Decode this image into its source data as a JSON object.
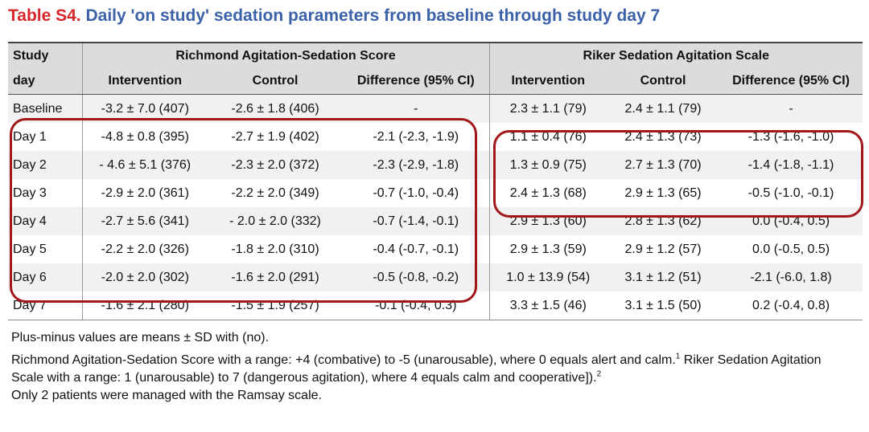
{
  "title": {
    "label": "Table S4.",
    "text": "Daily 'on study' sedation parameters from baseline through study day 7"
  },
  "table": {
    "stub_header": [
      "Study",
      "day"
    ],
    "groups": [
      "Richmond Agitation-Sedation Score",
      "Riker Sedation Agitation Scale"
    ],
    "subheaders": [
      "Intervention",
      "Control",
      "Difference (95% CI)",
      "Intervention",
      "Control",
      "Difference (95% CI)"
    ],
    "rows": [
      {
        "day": "Baseline",
        "cells": [
          "-3.2 ± 7.0 (407)",
          "-2.6 ± 1.8 (406)",
          "-",
          "2.3 ± 1.1 (79)",
          "2.4 ± 1.1 (79)",
          "-"
        ]
      },
      {
        "day": "Day 1",
        "cells": [
          "-4.8 ± 0.8 (395)",
          "-2.7 ± 1.9 (402)",
          "-2.1 (-2.3, -1.9)",
          "1.1 ± 0.4 (76)",
          "2.4 ± 1.3 (73)",
          "-1.3 (-1.6, -1.0)"
        ]
      },
      {
        "day": "Day 2",
        "cells": [
          "- 4.6 ± 5.1 (376)",
          "-2.3 ± 2.0 (372)",
          "-2.3 (-2.9, -1.8)",
          "1.3 ± 0.9 (75)",
          "2.7 ± 1.3 (70)",
          "-1.4 (-1.8, -1.1)"
        ]
      },
      {
        "day": "Day 3",
        "cells": [
          "-2.9 ± 2.0 (361)",
          "-2.2 ± 2.0 (349)",
          "-0.7 (-1.0, -0.4)",
          "2.4 ± 1.3 (68)",
          "2.9 ± 1.3 (65)",
          "-0.5 (-1.0, -0.1)"
        ]
      },
      {
        "day": "Day 4",
        "cells": [
          "-2.7 ± 5.6 (341)",
          "- 2.0 ± 2.0 (332)",
          "-0.7 (-1.4, -0.1)",
          "2.9 ± 1.3 (60)",
          "2.8 ± 1.3 (62)",
          "0.0 (-0.4, 0.5)"
        ]
      },
      {
        "day": "Day 5",
        "cells": [
          "-2.2 ± 2.0 (326)",
          "-1.8 ± 2.0 (310)",
          "-0.4 (-0.7, -0.1)",
          "2.9 ± 1.3 (59)",
          "2.9 ± 1.2 (57)",
          "0.0 (-0.5, 0.5)"
        ]
      },
      {
        "day": "Day 6",
        "cells": [
          "-2.0 ± 2.0 (302)",
          "-1.6 ± 2.0 (291)",
          "-0.5 (-0.8, -0.2)",
          "1.0 ± 13.9 (54)",
          "3.1 ± 1.2 (51)",
          "-2.1 (-6.0, 1.8)"
        ]
      },
      {
        "day": "Day 7",
        "cells": [
          "-1.6 ± 2.1 (280)",
          "-1.5 ± 1.9 (257)",
          "-0.1 (-0.4, 0.3)",
          "3.3 ± 1.5 (46)",
          "3.1 ± 1.5 (50)",
          "0.2 (-0.4, 0.8)"
        ]
      }
    ]
  },
  "notes": {
    "line1": "Plus-minus values are means ± SD with (no).",
    "line2a": "Richmond Agitation-Sedation Score with a range: +4 (combative) to -5 (unarousable), where 0 equals alert and calm.",
    "line2a_ref": "1",
    "line2b": "Riker Sedation Agitation Scale with a range: 1 (unarousable) to 7 (dangerous agitation), where 4 equals calm and cooperative]).",
    "line2b_ref": "2",
    "line2c": "Only 2 patients were managed with the Ramsay scale."
  },
  "highlight_color": "#a2171a"
}
